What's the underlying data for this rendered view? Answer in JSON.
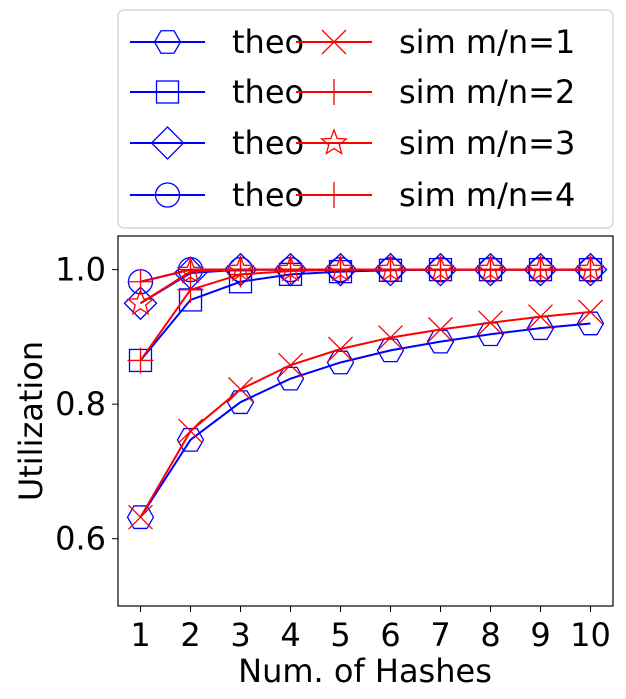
{
  "chart_data": {
    "type": "line",
    "xlabel": "Num. of Hashes",
    "ylabel": "Utilization",
    "x": [
      1,
      2,
      3,
      4,
      5,
      6,
      7,
      8,
      9,
      10
    ],
    "xlim": [
      0.55,
      10.45
    ],
    "ylim": [
      0.5,
      1.05
    ],
    "xticks": [
      "1",
      "2",
      "3",
      "4",
      "5",
      "6",
      "7",
      "8",
      "9",
      "10"
    ],
    "yticks": [
      {
        "value": 0.6,
        "label": "0.6"
      },
      {
        "value": 0.8,
        "label": "0.8"
      },
      {
        "value": 1.0,
        "label": "1.0"
      }
    ],
    "grid": false,
    "legend_position": "above plot, two columns",
    "series": [
      {
        "name": "theo",
        "color": "#0000ff",
        "marker": "hexagon",
        "values": [
          0.632,
          0.747,
          0.803,
          0.838,
          0.862,
          0.88,
          0.893,
          0.904,
          0.913,
          0.92
        ]
      },
      {
        "name": "theo",
        "color": "#0000ff",
        "marker": "square",
        "values": [
          0.865,
          0.955,
          0.982,
          0.993,
          0.997,
          0.999,
          1.0,
          1.0,
          1.0,
          1.0
        ]
      },
      {
        "name": "theo",
        "color": "#0000ff",
        "marker": "diamond",
        "values": [
          0.95,
          0.995,
          1.0,
          1.0,
          1.0,
          1.0,
          1.0,
          1.0,
          1.0,
          1.0
        ]
      },
      {
        "name": "theo",
        "color": "#0000ff",
        "marker": "circle",
        "values": [
          0.982,
          1.0,
          1.0,
          1.0,
          1.0,
          1.0,
          1.0,
          1.0,
          1.0,
          1.0
        ]
      },
      {
        "name": "sim m/n=1",
        "color": "#ff0000",
        "marker": "x",
        "values": [
          0.632,
          0.76,
          0.822,
          0.858,
          0.882,
          0.899,
          0.911,
          0.921,
          0.93,
          0.937
        ]
      },
      {
        "name": "sim m/n=2",
        "color": "#ff0000",
        "marker": "plus",
        "values": [
          0.865,
          0.97,
          0.993,
          0.998,
          1.0,
          1.0,
          1.0,
          1.0,
          1.0,
          1.0
        ]
      },
      {
        "name": "sim m/n=3",
        "color": "#ff0000",
        "marker": "star",
        "values": [
          0.95,
          0.997,
          1.0,
          1.0,
          1.0,
          1.0,
          1.0,
          1.0,
          1.0,
          1.0
        ]
      },
      {
        "name": "sim m/n=4",
        "color": "#ff0000",
        "marker": "plus",
        "values": [
          0.982,
          1.0,
          1.0,
          1.0,
          1.0,
          1.0,
          1.0,
          1.0,
          1.0,
          1.0
        ]
      }
    ]
  }
}
